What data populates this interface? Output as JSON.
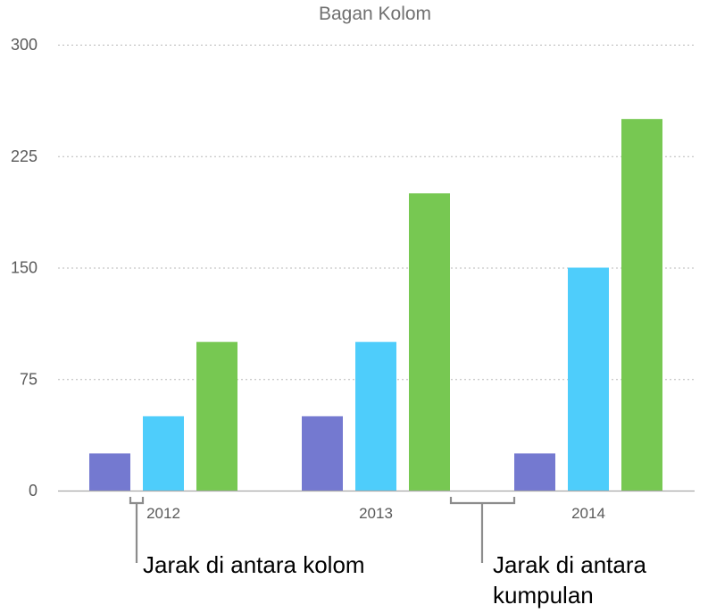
{
  "chart_data": {
    "type": "bar",
    "title": "Bagan Kolom",
    "categories": [
      "2012",
      "2013",
      "2014"
    ],
    "series": [
      {
        "values": [
          25,
          50,
          25
        ],
        "color": "#7479d0"
      },
      {
        "values": [
          50,
          100,
          150
        ],
        "color": "#4ecdfb"
      },
      {
        "values": [
          100,
          200,
          250
        ],
        "color": "#77c852"
      }
    ],
    "ylim": [
      0,
      300
    ],
    "yticks": [
      0,
      75,
      150,
      225,
      300
    ],
    "ytick_labels": [
      "0",
      "75",
      "150",
      "225",
      "300"
    ],
    "grid": true,
    "xlabel": "",
    "ylabel": ""
  },
  "annotations": {
    "column_gap": {
      "lines": [
        "Jarak di antara kolom"
      ]
    },
    "set_gap": {
      "lines": [
        "Jarak di antara",
        "kumpulan"
      ]
    }
  }
}
